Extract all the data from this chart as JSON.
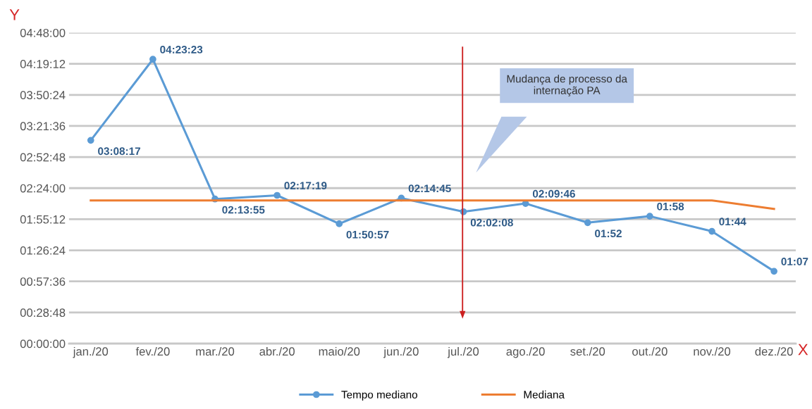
{
  "chart_data": {
    "type": "line",
    "xlabel": "X",
    "ylabel": "Y",
    "categories": [
      "jan./20",
      "fev./20",
      "mar./20",
      "abr./20",
      "maio/20",
      "jun./20",
      "jul./20",
      "ago./20",
      "set./20",
      "out./20",
      "nov./20",
      "dez./20"
    ],
    "series": [
      {
        "name": "Tempo mediano",
        "color": "#5b9bd5",
        "marker": "circle",
        "values": [
          3.1381,
          4.3897,
          2.2319,
          2.2886,
          1.8492,
          2.2458,
          2.0356,
          2.1628,
          1.8667,
          1.9667,
          1.7333,
          1.1167
        ],
        "value_labels": [
          "03:08:17",
          "04:23:23",
          "02:13:55",
          "02:17:19",
          "01:50:57",
          "02:14:45",
          "02:02:08",
          "02:09:46",
          "01:52",
          "01:58",
          "01:44",
          "01:07"
        ]
      },
      {
        "name": "Mediana",
        "color": "#ed7d31",
        "marker": "none",
        "values": [
          2.21,
          2.21,
          2.21,
          2.21,
          2.21,
          2.21,
          2.21,
          2.21,
          2.21,
          2.21,
          2.21,
          2.08
        ]
      }
    ],
    "ylim": [
      0,
      4.8
    ],
    "yticks": [
      {
        "value": 0,
        "label": "00:00:00"
      },
      {
        "value": 0.48,
        "label": "00:28:48"
      },
      {
        "value": 0.96,
        "label": "00:57:36"
      },
      {
        "value": 1.44,
        "label": "01:26:24"
      },
      {
        "value": 1.92,
        "label": "01:55:12"
      },
      {
        "value": 2.4,
        "label": "02:24:00"
      },
      {
        "value": 2.88,
        "label": "02:52:48"
      },
      {
        "value": 3.36,
        "label": "03:21:36"
      },
      {
        "value": 3.84,
        "label": "03:50:24"
      },
      {
        "value": 4.32,
        "label": "04:19:12"
      },
      {
        "value": 4.8,
        "label": "04:48:00"
      }
    ],
    "grid": "y",
    "legend": "bottom",
    "annotations": [
      "Mudança de processo da\ninternação PA"
    ]
  }
}
